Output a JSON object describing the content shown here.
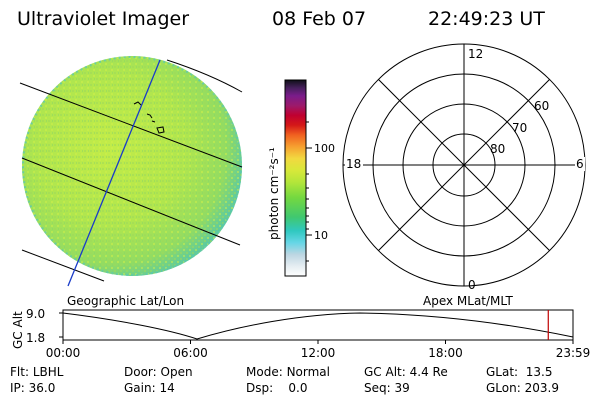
{
  "header": {
    "title": "Ultraviolet Imager",
    "date": "08 Feb 07",
    "time": "22:49:23 UT"
  },
  "colorbar": {
    "label": "photon cm⁻²s⁻¹",
    "ticks": [
      "100",
      "10"
    ]
  },
  "polar_plot": {
    "mlt_labels": {
      "top": "12",
      "bottom": "0",
      "left": "18",
      "right": "6"
    },
    "lat_labels": [
      "60",
      "70",
      "80"
    ]
  },
  "captions": {
    "left": "Geographic Lat/Lon",
    "right": "Apex MLat/MLT"
  },
  "altitude_plot": {
    "ylabel": "GC Alt",
    "yticks": [
      "9.0",
      "1.8"
    ],
    "xticks": [
      "00:00",
      "06:00",
      "12:00",
      "18:00",
      "23:59"
    ],
    "marker_time_hours": 22.82
  },
  "info": {
    "row1": [
      {
        "label": "Flt:",
        "value": "LBHL"
      },
      {
        "label": "Door:",
        "value": "Open"
      },
      {
        "label": "Mode:",
        "value": "Normal"
      },
      {
        "label": "GC Alt:",
        "value": "4.4 Re"
      },
      {
        "label": "GLat:",
        "value": "13.5"
      }
    ],
    "row2": [
      {
        "label": "IP:",
        "value": "36.0"
      },
      {
        "label": "Gain:",
        "value": "14"
      },
      {
        "label": "Dsp:",
        "value": "0.0"
      },
      {
        "label": "Seq:",
        "value": "39"
      },
      {
        "label": "GLon:",
        "value": "203.9"
      }
    ]
  },
  "colors": {
    "disk_main": "#b3e84c",
    "disk_edge": "#52c8a0",
    "grid_line": "#000000",
    "meridian": "#1a3cc8",
    "marker": "#c00000"
  }
}
